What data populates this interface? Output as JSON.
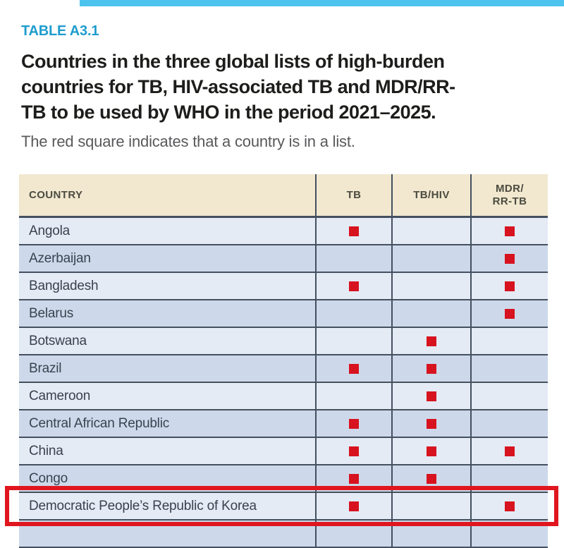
{
  "header": {
    "table_label": "TABLE A3.1",
    "title_lines": [
      "Countries in the three global lists of high-burden",
      "countries for TB, HIV-associated TB and MDR/RR-",
      "TB to be used by WHO in the period 2021–2025."
    ],
    "subtitle": "The red square indicates that a country is in a list."
  },
  "table": {
    "columns": [
      "COUNTRY",
      "TB",
      "TB/HIV",
      "MDR/\nRR-TB"
    ],
    "marker_meaning": "red square = country is in the list",
    "rows": [
      {
        "country": "Angola",
        "tb": true,
        "tbhiv": false,
        "mdr": true,
        "highlighted": false
      },
      {
        "country": "Azerbaijan",
        "tb": false,
        "tbhiv": false,
        "mdr": true,
        "highlighted": false
      },
      {
        "country": "Bangladesh",
        "tb": true,
        "tbhiv": false,
        "mdr": true,
        "highlighted": false
      },
      {
        "country": "Belarus",
        "tb": false,
        "tbhiv": false,
        "mdr": true,
        "highlighted": false
      },
      {
        "country": "Botswana",
        "tb": false,
        "tbhiv": true,
        "mdr": false,
        "highlighted": false
      },
      {
        "country": "Brazil",
        "tb": true,
        "tbhiv": true,
        "mdr": false,
        "highlighted": false
      },
      {
        "country": "Cameroon",
        "tb": false,
        "tbhiv": true,
        "mdr": false,
        "highlighted": false
      },
      {
        "country": "Central African Republic",
        "tb": true,
        "tbhiv": true,
        "mdr": false,
        "highlighted": false
      },
      {
        "country": "China",
        "tb": true,
        "tbhiv": true,
        "mdr": true,
        "highlighted": false
      },
      {
        "country": "Congo",
        "tb": true,
        "tbhiv": true,
        "mdr": false,
        "highlighted": false
      },
      {
        "country": "Democratic People’s Republic of Korea",
        "tb": true,
        "tbhiv": false,
        "mdr": true,
        "highlighted": true
      },
      {
        "country": "",
        "tb": false,
        "tbhiv": false,
        "mdr": false,
        "highlighted": false,
        "partial": true
      }
    ]
  },
  "colors": {
    "accent_cyan": "#4cc4ee",
    "label_blue": "#1f9cce",
    "marker_red": "#d7131f",
    "highlight_red": "#e0161f",
    "header_beige": "#f1e8cf",
    "row_light": "#e4ebf5",
    "row_dark": "#cdd9ea",
    "grid_line": "#44505f"
  }
}
